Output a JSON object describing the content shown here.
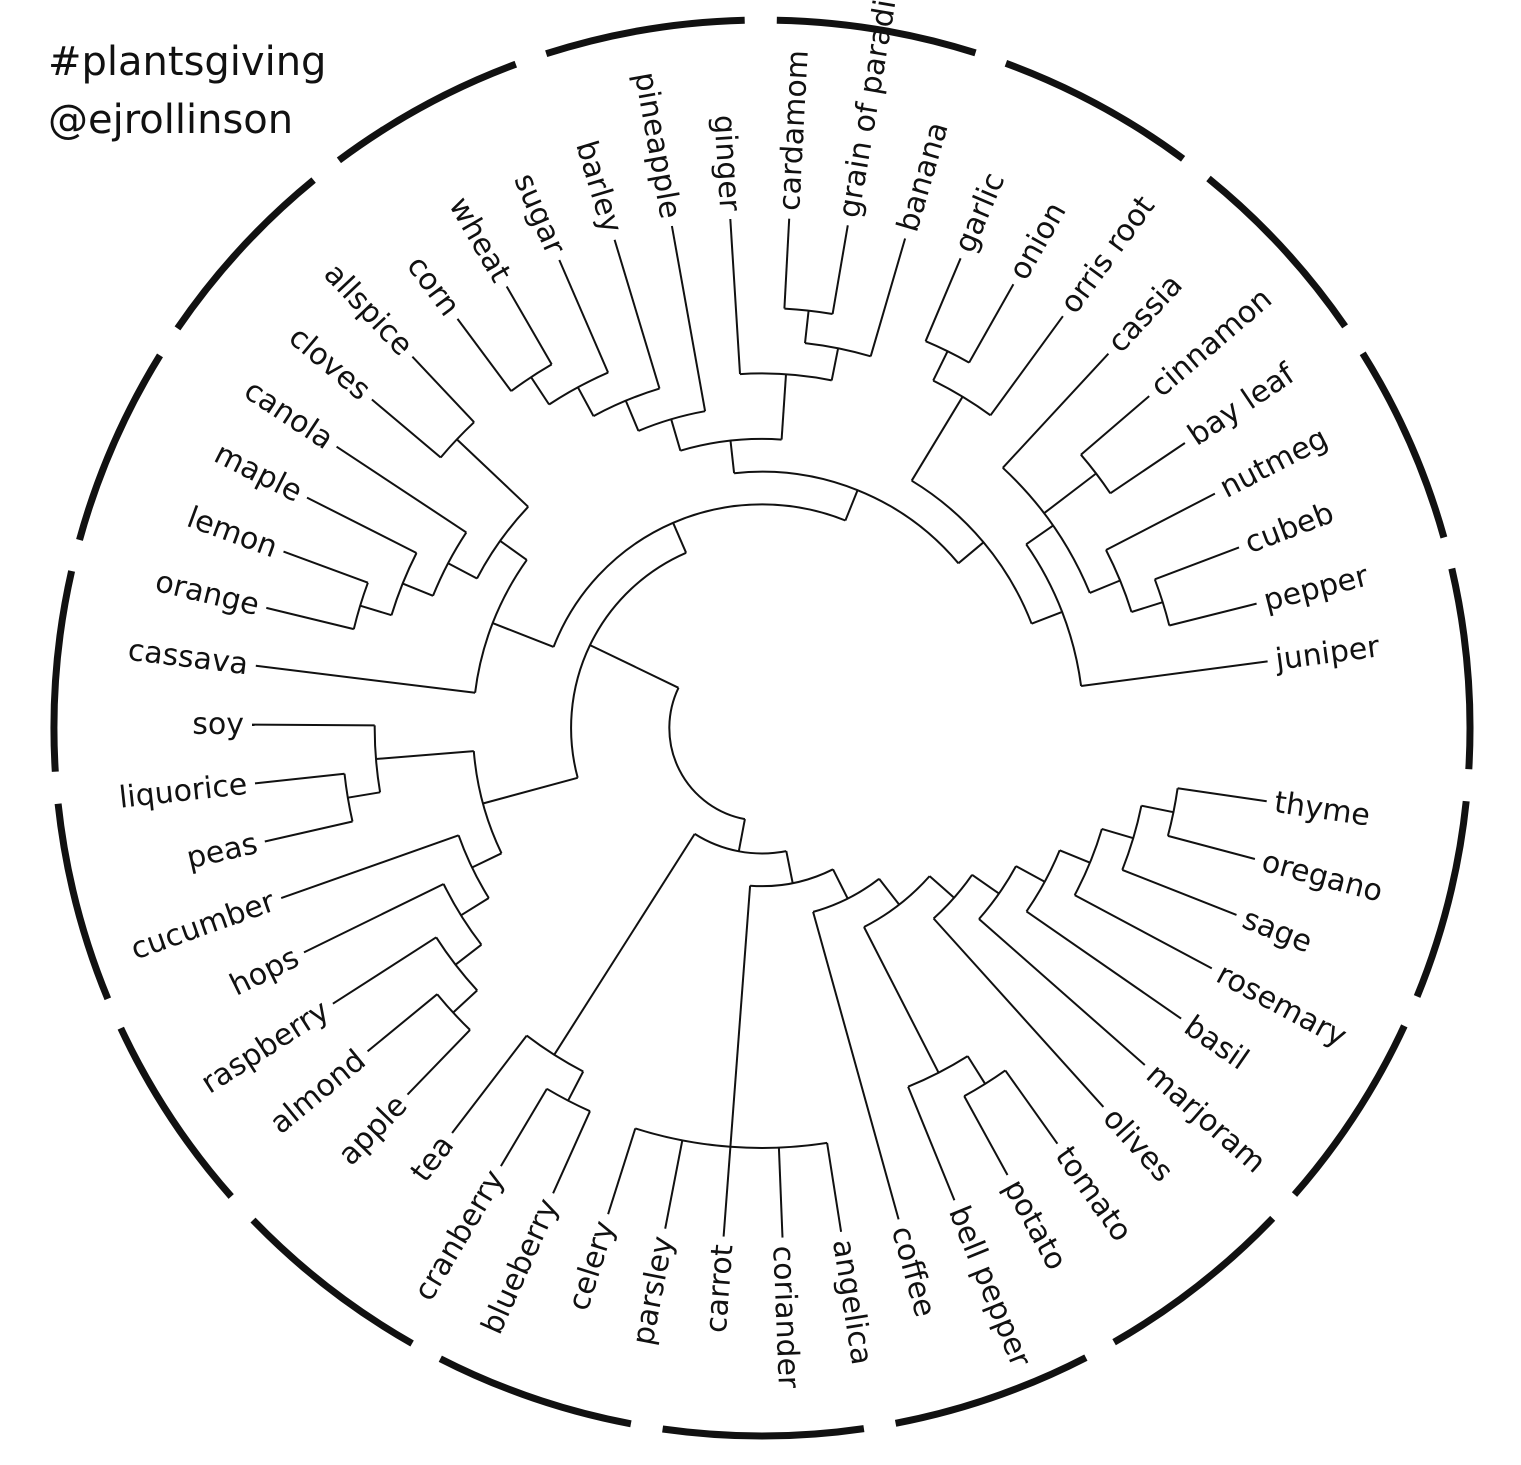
{
  "header": {
    "hashtag": "#plantsgiving",
    "handle": "@ejrollinson"
  },
  "tree": {
    "type": "circular-cladogram",
    "outer_ring": "dashed",
    "tips": [
      "juniper",
      "pepper",
      "cubeb",
      "nutmeg",
      "bay leaf",
      "cinnamon",
      "cassia",
      "orris root",
      "onion",
      "garlic",
      "banana",
      "grain of paradise",
      "cardamom",
      "ginger",
      "pineapple",
      "barley",
      "sugar",
      "wheat",
      "corn",
      "allspice",
      "cloves",
      "canola",
      "maple",
      "lemon",
      "orange",
      "cassava",
      "soy",
      "liquorice",
      "peas",
      "cucumber",
      "hops",
      "raspberry",
      "almond",
      "apple",
      "tea",
      "cranberry",
      "blueberry",
      "celery",
      "parsley",
      "carrot",
      "coriander",
      "angelica",
      "coffee",
      "bell pepper",
      "potato",
      "tomato",
      "olives",
      "marjoram",
      "basil",
      "rosemary",
      "sage",
      "oregano",
      "thyme"
    ]
  }
}
